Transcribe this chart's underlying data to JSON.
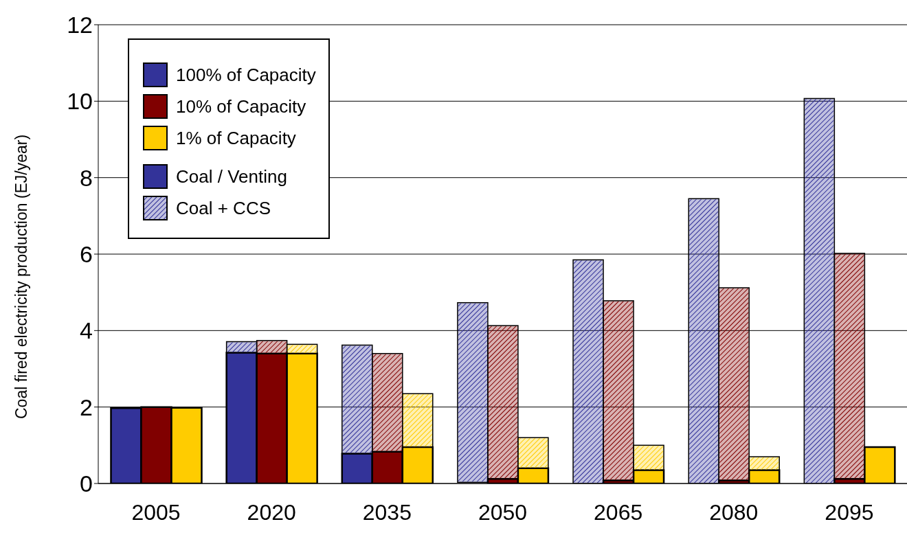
{
  "chart_data": {
    "type": "bar",
    "ylabel": "Coal fired electricity production (EJ/year)",
    "categories": [
      "2005",
      "2020",
      "2035",
      "2050",
      "2065",
      "2080",
      "2095"
    ],
    "series": [
      {
        "name": "100% of Capacity",
        "color": "#333399",
        "values": [
          1.97,
          3.42,
          0.78,
          null,
          null,
          null,
          null
        ]
      },
      {
        "name": "10% of Capacity",
        "color": "#800000",
        "values": [
          2.0,
          3.4,
          0.83,
          0.12,
          0.08,
          0.08,
          0.12
        ]
      },
      {
        "name": "1% of Capacity",
        "color": "#ffcc00",
        "values": [
          1.98,
          3.4,
          0.95,
          0.4,
          0.35,
          0.35,
          0.95
        ]
      },
      {
        "name": "Coal + CCS",
        "color": "#333399",
        "base": [
          null,
          3.42,
          0.78,
          0.03,
          0,
          0,
          0
        ],
        "values": [
          null,
          0.29,
          2.84,
          4.7,
          5.85,
          7.45,
          10.07
        ]
      },
      {
        "color": "#800000",
        "base": [
          null,
          3.4,
          0.83,
          0.12,
          0.08,
          0.08,
          0.12
        ],
        "values": [
          null,
          0.34,
          2.57,
          4.01,
          4.7,
          5.04,
          5.9
        ]
      },
      {
        "color": "#ffcc00",
        "base": [
          null,
          3.4,
          0.95,
          0.4,
          0.35,
          0.35,
          null
        ],
        "values": [
          null,
          0.24,
          1.4,
          0.8,
          0.65,
          0.35,
          null
        ]
      }
    ],
    "annotations": [
      "Coal / Venting"
    ],
    "ylim": [
      0,
      12
    ],
    "yticks": [
      0,
      2,
      4,
      6,
      8,
      10,
      12
    ],
    "grid": "y",
    "legend": "top left"
  }
}
